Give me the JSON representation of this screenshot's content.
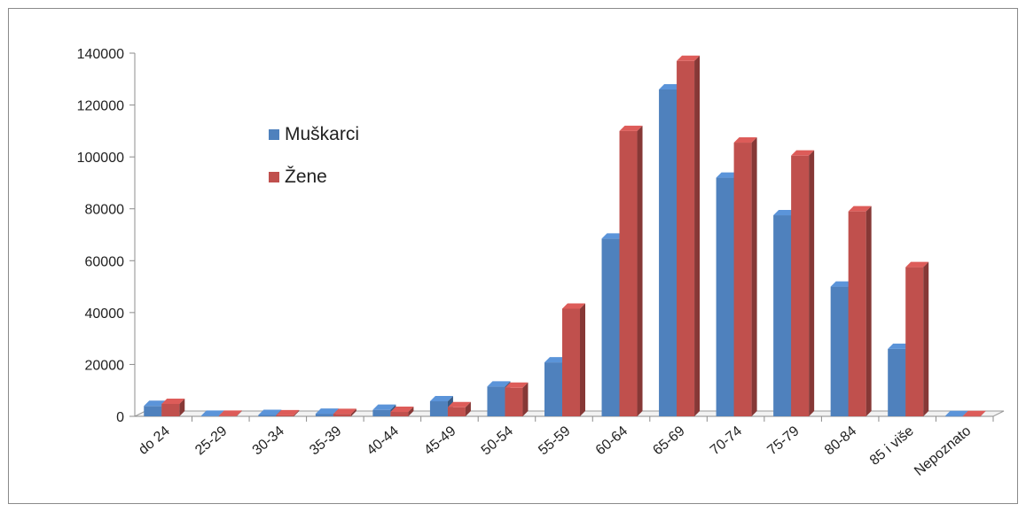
{
  "chart_data": {
    "type": "bar",
    "categories": [
      "do 24",
      "25-29",
      "30-34",
      "35-39",
      "40-44",
      "45-49",
      "50-54",
      "55-59",
      "60-64",
      "65-69",
      "70-74",
      "75-79",
      "80-84",
      "85 i više",
      "Nepoznato"
    ],
    "series": [
      {
        "name": "Muškarci",
        "color": "#4f81bd",
        "values": [
          4000,
          200,
          500,
          1000,
          2500,
          5800,
          11500,
          20800,
          68500,
          126000,
          92000,
          77500,
          50000,
          26000,
          100
        ]
      },
      {
        "name": "Žene",
        "color": "#c0504d",
        "values": [
          4800,
          200,
          400,
          900,
          1700,
          3500,
          11000,
          41500,
          110000,
          137000,
          105500,
          100500,
          79000,
          57500,
          100
        ]
      }
    ],
    "ylim": [
      0,
      140000
    ],
    "yticks": [
      "0",
      "20000",
      "40000",
      "60000",
      "80000",
      "100000",
      "120000",
      "140000"
    ],
    "legend_position": "upper-left inside plot",
    "grid": false,
    "style": "3d-clustered-column"
  }
}
